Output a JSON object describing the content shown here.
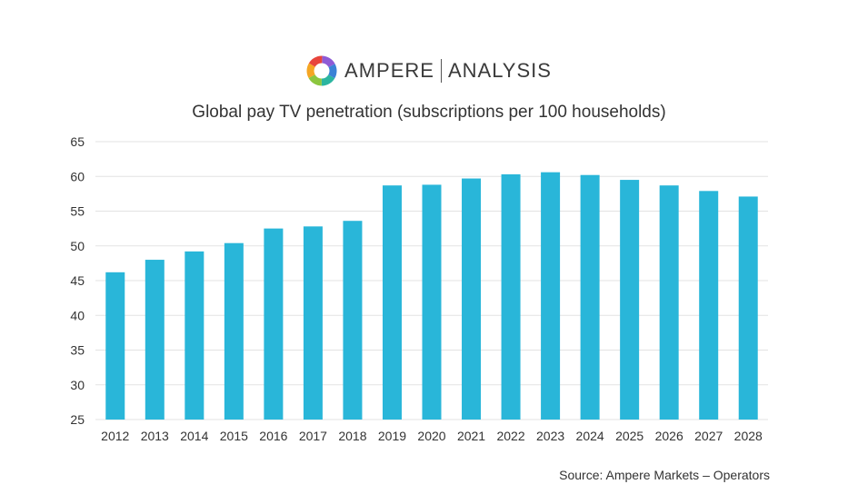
{
  "brand": {
    "name": "AMPERE",
    "sub": "ANALYSIS"
  },
  "colors": {
    "bar": "#29b6d9",
    "grid": "#e3e3e3",
    "text": "#333333",
    "logo": [
      "#8e5bd6",
      "#3b82d6",
      "#2bb5a0",
      "#8cc63f",
      "#f5a623",
      "#e8453c"
    ]
  },
  "icons": {
    "logo": "ampere-ring-logo"
  },
  "chart_data": {
    "type": "bar",
    "title": "Global pay TV penetration (subscriptions per 100 households)",
    "categories": [
      "2012",
      "2013",
      "2014",
      "2015",
      "2016",
      "2017",
      "2018",
      "2019",
      "2020",
      "2021",
      "2022",
      "2023",
      "2024",
      "2025",
      "2026",
      "2027",
      "2028"
    ],
    "values": [
      46.2,
      48.0,
      49.2,
      50.4,
      52.5,
      52.8,
      53.6,
      58.7,
      58.8,
      59.7,
      60.3,
      60.6,
      60.2,
      59.5,
      58.7,
      57.9,
      57.1
    ],
    "ylim": [
      25,
      65
    ],
    "yticks": [
      25,
      30,
      35,
      40,
      45,
      50,
      55,
      60,
      65
    ],
    "grid": true,
    "legend": "none",
    "xlabel": "",
    "ylabel": ""
  },
  "source": "Source: Ampere Markets – Operators"
}
